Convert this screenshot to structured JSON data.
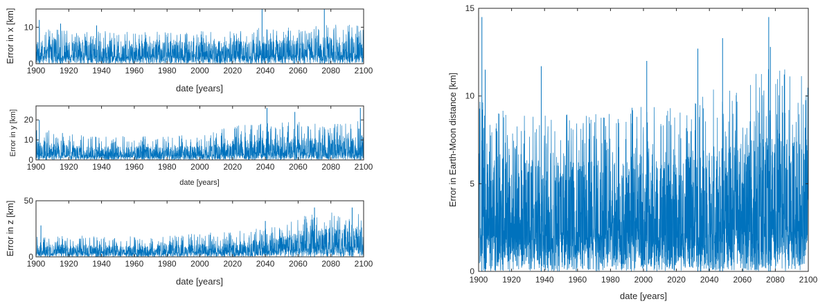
{
  "colors": {
    "series": "#0072BD",
    "axes": "#262626"
  },
  "chart_data": [
    {
      "id": "x",
      "type": "line",
      "xlabel": "date [years]",
      "ylabel": "Error in x [km]",
      "xlim": [
        1900,
        2100
      ],
      "ylim": [
        0,
        15
      ],
      "xticks": [
        "1900",
        "1920",
        "1940",
        "1960",
        "1980",
        "2000",
        "2020",
        "2040",
        "2060",
        "2080",
        "2100"
      ],
      "yticks": [
        "0",
        "10"
      ],
      "envelope": {
        "x": [
          1900,
          1920,
          1940,
          1960,
          1980,
          2000,
          2020,
          2040,
          2060,
          2080,
          2100
        ],
        "band_top": [
          6,
          6,
          6,
          6,
          6,
          6,
          6,
          6,
          6.5,
          7,
          7
        ],
        "spike_max": [
          10,
          9,
          9,
          9,
          9,
          9,
          9,
          10,
          10,
          11,
          11
        ]
      },
      "peaks": [
        [
          1902,
          12
        ],
        [
          1915,
          11
        ],
        [
          1937,
          10.5
        ],
        [
          2038,
          15
        ],
        [
          2076,
          15
        ]
      ]
    },
    {
      "id": "y",
      "type": "line",
      "xlabel": "date [years]",
      "ylabel": "Error in y [km]",
      "xlim": [
        1900,
        2100
      ],
      "ylim": [
        0,
        27
      ],
      "xticks": [
        "1900",
        "1920",
        "1940",
        "1960",
        "1980",
        "2000",
        "2020",
        "2040",
        "2060",
        "2080",
        "2100"
      ],
      "yticks": [
        "0",
        "10",
        "20"
      ],
      "envelope": {
        "x": [
          1900,
          1920,
          1940,
          1960,
          1980,
          2000,
          2020,
          2040,
          2060,
          2080,
          2100
        ],
        "band_top": [
          9,
          7,
          6.5,
          6.5,
          6.5,
          7,
          9,
          11,
          11,
          10,
          12
        ],
        "spike_max": [
          16,
          13,
          12,
          12,
          12,
          13,
          17,
          20,
          19,
          18,
          20
        ]
      },
      "peaks": [
        [
          1902,
          20
        ],
        [
          2041,
          26
        ],
        [
          2058,
          24
        ],
        [
          2098,
          26
        ]
      ]
    },
    {
      "id": "z",
      "type": "line",
      "xlabel": "date [years]",
      "ylabel": "Error in z [km]",
      "xlim": [
        1900,
        2100
      ],
      "ylim": [
        0,
        50
      ],
      "xticks": [
        "1900",
        "1920",
        "1940",
        "1960",
        "1980",
        "2000",
        "2020",
        "2040",
        "2060",
        "2080",
        "2100"
      ],
      "yticks": [
        "0",
        "50"
      ],
      "envelope": {
        "x": [
          1900,
          1920,
          1940,
          1960,
          1980,
          2000,
          2020,
          2040,
          2060,
          2080,
          2100
        ],
        "band_top": [
          11,
          10,
          10,
          10,
          10,
          11,
          13,
          15,
          20,
          25,
          25
        ],
        "spike_max": [
          20,
          19,
          19,
          19,
          19,
          21,
          24,
          27,
          36,
          40,
          38
        ]
      },
      "peaks": [
        [
          1903,
          28
        ],
        [
          2040,
          32
        ],
        [
          2070,
          44
        ],
        [
          2093,
          44
        ]
      ]
    },
    {
      "id": "d",
      "type": "line",
      "xlabel": "date [years]",
      "ylabel": "Error in Earth-Moon distance [km]",
      "xlim": [
        1900,
        2100
      ],
      "ylim": [
        0,
        15
      ],
      "xticks": [
        "1900",
        "1920",
        "1940",
        "1960",
        "1980",
        "2000",
        "2020",
        "2040",
        "2060",
        "2080",
        "2100"
      ],
      "yticks": [
        "0",
        "5",
        "10",
        "15"
      ],
      "envelope": {
        "x": [
          1900,
          1920,
          1940,
          1960,
          1980,
          2000,
          2020,
          2040,
          2060,
          2080,
          2100
        ],
        "band_top": [
          6.5,
          6,
          6,
          6,
          6,
          6,
          6,
          6.5,
          7,
          7.5,
          7
        ],
        "spike_max": [
          10,
          9,
          9,
          9,
          9,
          9.5,
          9.5,
          11,
          11,
          12,
          11
        ]
      },
      "peaks": [
        [
          1902,
          14.5
        ],
        [
          1904,
          11.5
        ],
        [
          1938,
          11.7
        ],
        [
          2002,
          12
        ],
        [
          2033,
          12.7
        ],
        [
          2048,
          13.3
        ],
        [
          2076,
          14.5
        ],
        [
          2077,
          12.8
        ]
      ]
    }
  ]
}
